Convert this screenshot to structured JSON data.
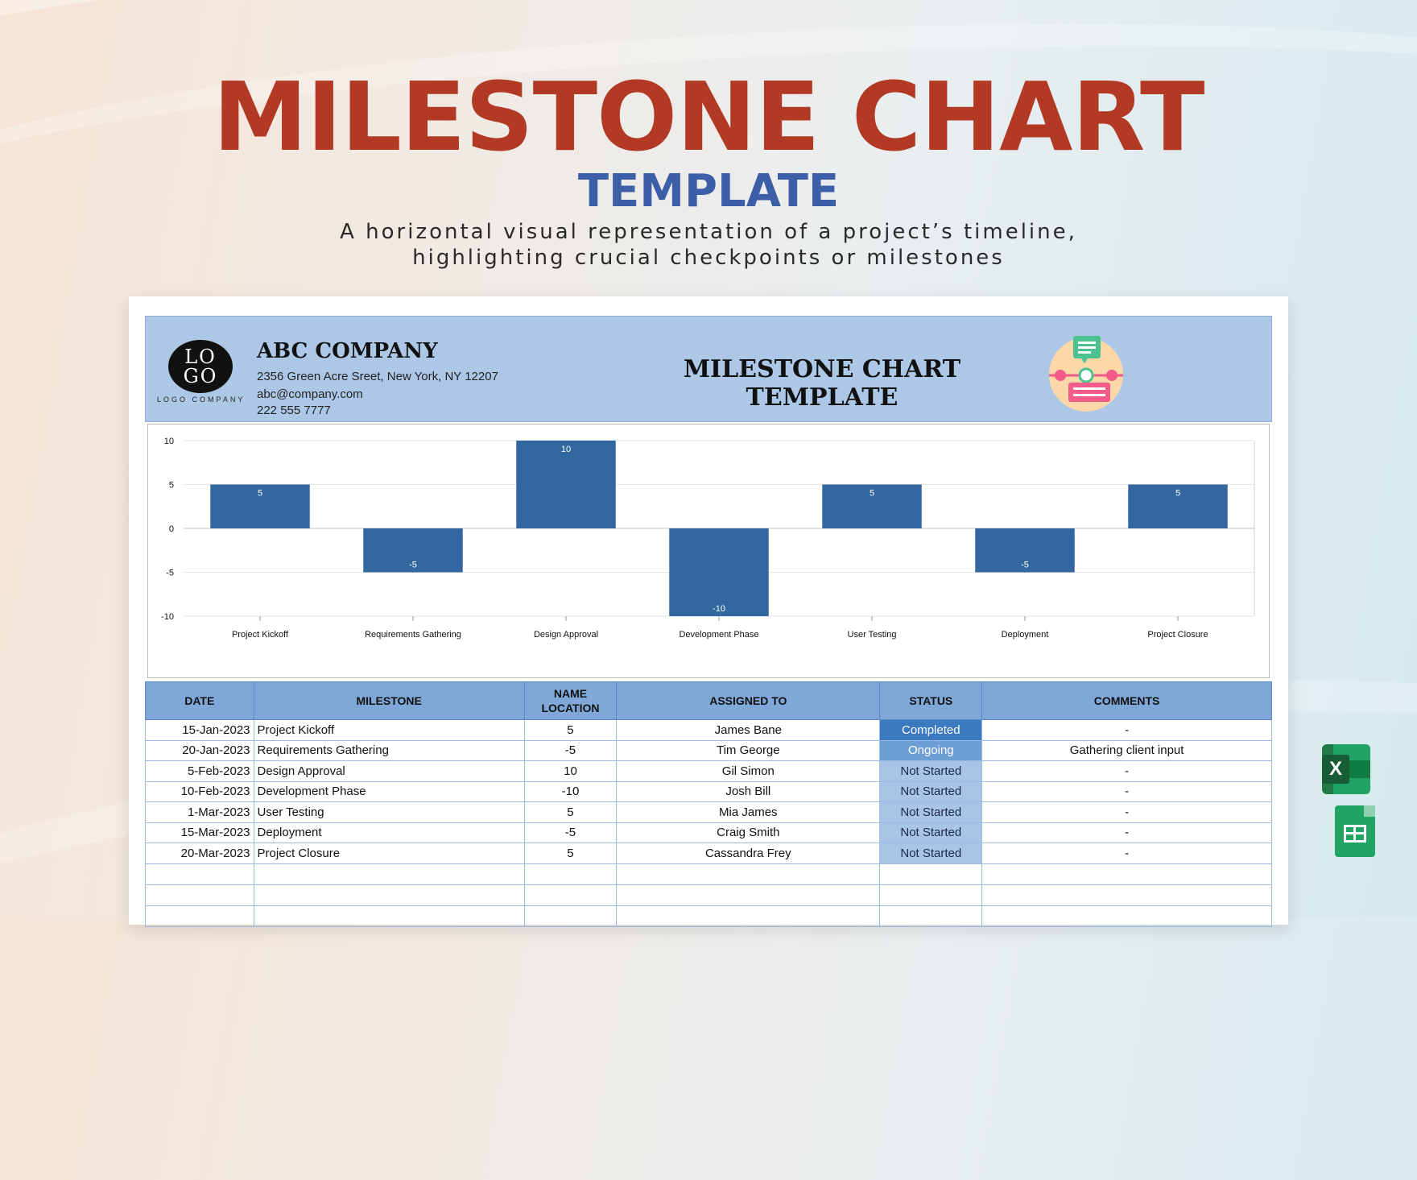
{
  "hero": {
    "title": "MILESTONE CHART",
    "subtitle": "TEMPLATE",
    "description": "A horizontal visual representation of a project’s timeline, highlighting crucial checkpoints or milestones"
  },
  "company": {
    "logo_text_1": "LO",
    "logo_text_2": "GO",
    "logo_caption": "LOGO COMPANY",
    "name": "ABC COMPANY",
    "address": "2356 Green Acre Sreet, New York, NY 12207",
    "email": "abc@company.com",
    "phone": "222 555 7777"
  },
  "sheet_title": "MILESTONE CHART TEMPLATE",
  "colors": {
    "hero_title": "#b23a24",
    "hero_subtitle": "#3d5fa8",
    "bar": "#32679f",
    "header_band": "#adc8e6",
    "table_header": "#7fa8d8",
    "status_completed": "#3b79c1",
    "status_ongoing": "#6d9fd4",
    "status_not_started": "#a9c5e6"
  },
  "chart_data": {
    "type": "bar",
    "categories": [
      "Project Kickoff",
      "Requirements Gathering",
      "Design Approval",
      "Development Phase",
      "User Testing",
      "Deployment",
      "Project Closure"
    ],
    "values": [
      5,
      -5,
      10,
      -10,
      5,
      -5,
      5
    ],
    "ylim": [
      -10,
      10
    ],
    "yticks": [
      10,
      5,
      0,
      -5,
      -10
    ],
    "data_labels": true,
    "grid": true,
    "legend": "none"
  },
  "table": {
    "headers": [
      "DATE",
      "MILESTONE",
      "NAME LOCATION",
      "ASSIGNED TO",
      "STATUS",
      "COMMENTS"
    ],
    "rows": [
      [
        "15-Jan-2023",
        "Project Kickoff",
        "5",
        "James Bane",
        "Completed",
        "-"
      ],
      [
        "20-Jan-2023",
        "Requirements Gathering",
        "-5",
        "Tim George",
        "Ongoing",
        "Gathering client input"
      ],
      [
        "5-Feb-2023",
        "Design Approval",
        "10",
        "Gil Simon",
        "Not Started",
        "-"
      ],
      [
        "10-Feb-2023",
        "Development Phase",
        "-10",
        "Josh Bill",
        "Not Started",
        "-"
      ],
      [
        "1-Mar-2023",
        "User Testing",
        "5",
        "Mia James",
        "Not Started",
        "-"
      ],
      [
        "15-Mar-2023",
        "Deployment",
        "-5",
        "Craig Smith",
        "Not Started",
        "-"
      ],
      [
        "20-Mar-2023",
        "Project Closure",
        "5",
        "Cassandra Frey",
        "Not Started",
        "-"
      ]
    ],
    "status_colors": {
      "Completed": "#3b79c1",
      "Ongoing": "#6d9fd4",
      "Not Started": "#a9c5e6"
    },
    "empty_rows": 3
  },
  "app_icons": {
    "excel": "excel-icon",
    "sheets": "google-sheets-icon",
    "excel_letter": "X"
  }
}
